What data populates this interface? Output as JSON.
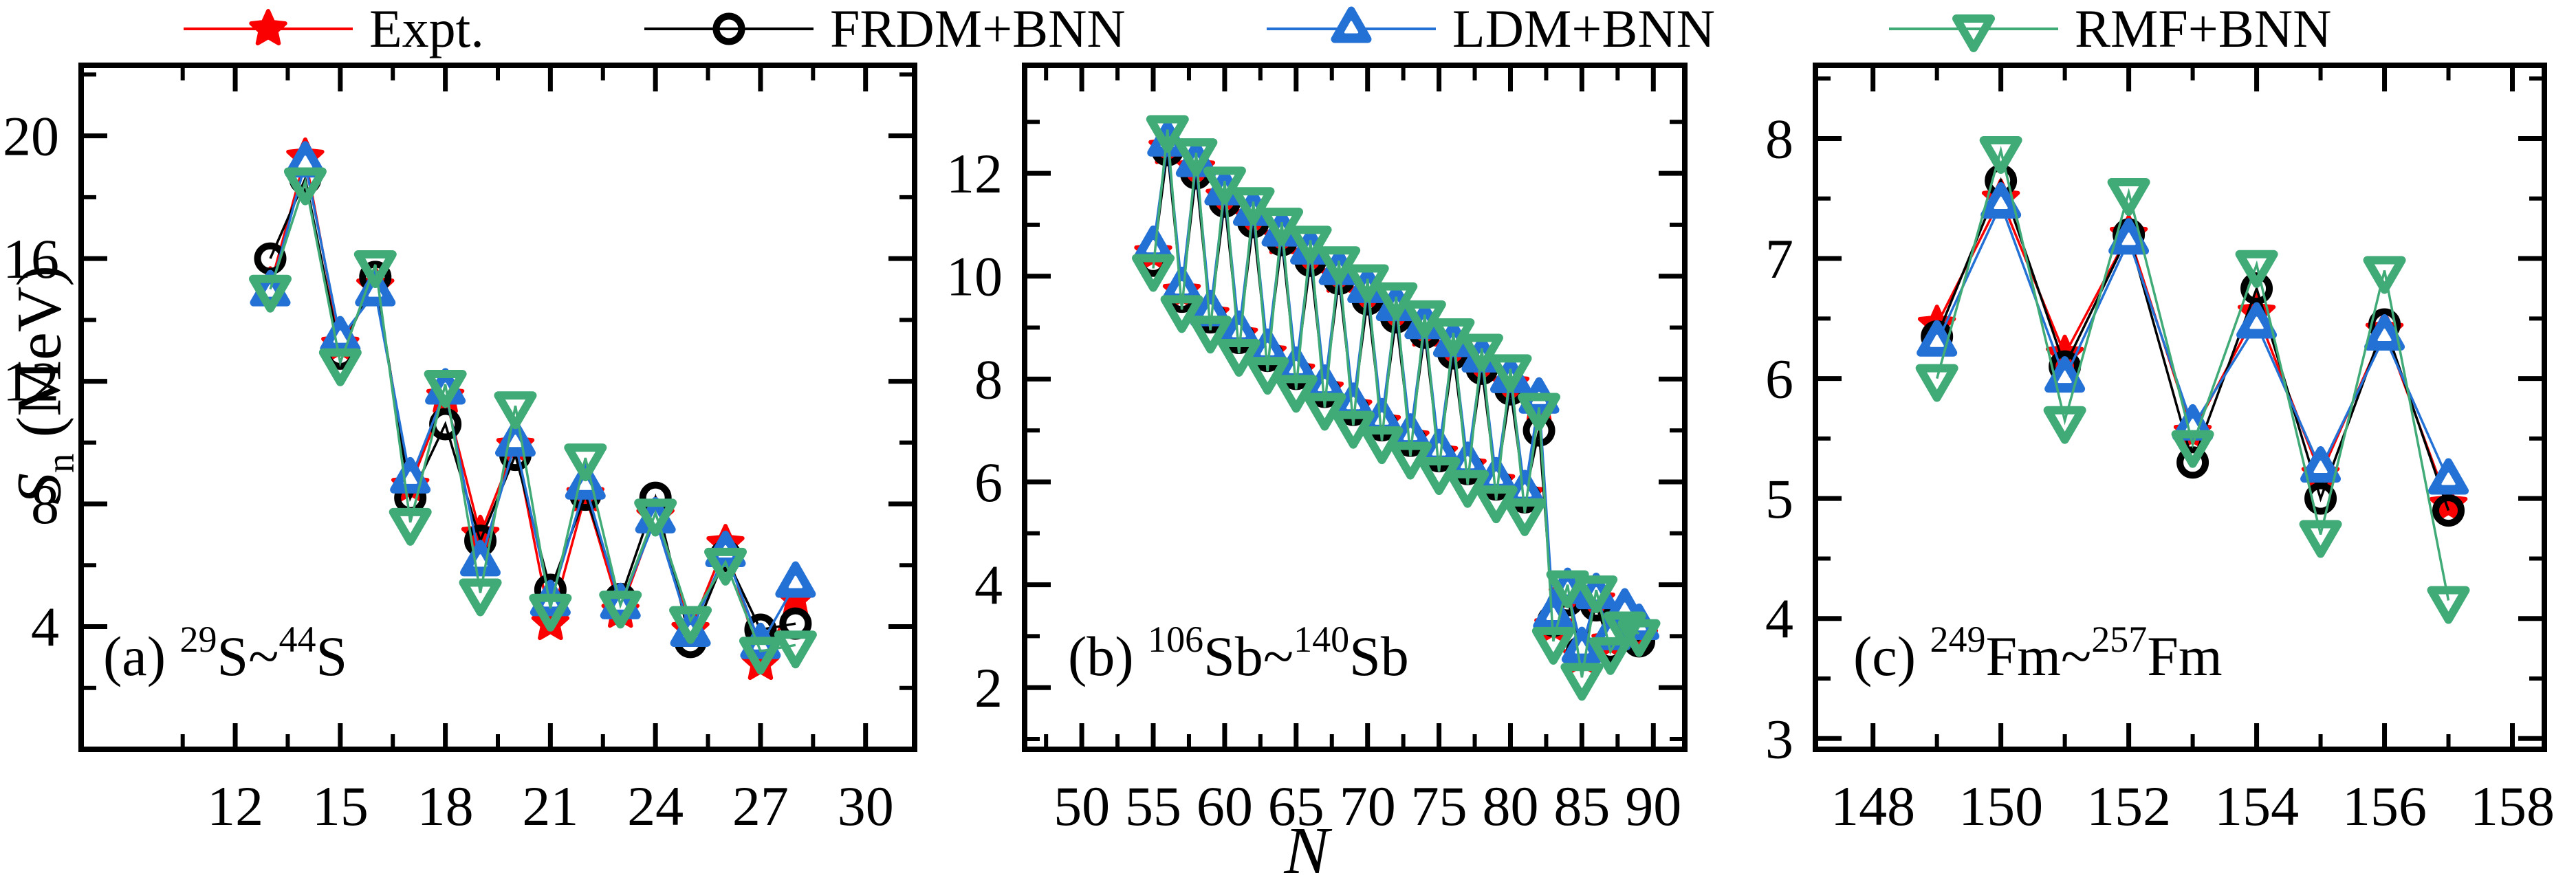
{
  "legend": {
    "items": [
      {
        "label": "Expt.",
        "marker": "star",
        "color": "#fa0000"
      },
      {
        "label": "FRDM+BNN",
        "marker": "circle-open",
        "color": "#000000"
      },
      {
        "label": "LDM+BNN",
        "marker": "triangle-up",
        "color": "#2471d6"
      },
      {
        "label": "RMF+BNN",
        "marker": "triangle-down",
        "color": "#41ab78"
      }
    ]
  },
  "axes": {
    "xlabel": "N",
    "ylabel_main": "S",
    "ylabel_sub": "n",
    "ylabel_rest": " (MeV)"
  },
  "chart_data": [
    {
      "type": "line",
      "panel": "a",
      "annotation": {
        "prefix": "(a) ",
        "sup1": "29",
        "mid": "S~",
        "sup2": "44",
        "end": "S"
      },
      "xlim": [
        7.6,
        31.4
      ],
      "ylim": [
        0,
        22.3
      ],
      "xticks": [
        12,
        15,
        18,
        21,
        24,
        27,
        30
      ],
      "yticks": [
        4,
        8,
        12,
        16,
        20
      ],
      "x": [
        13,
        14,
        15,
        16,
        17,
        18,
        19,
        20,
        21,
        22,
        23,
        24,
        25,
        26,
        27,
        28
      ],
      "series": [
        {
          "name": "Expt.",
          "marker": "star",
          "color": "#fa0000",
          "values": [
            15.1,
            19.3,
            13.2,
            15.1,
            8.6,
            11.5,
            7.0,
            9.9,
            4.1,
            8.3,
            4.5,
            7.6,
            3.9,
            6.7,
            2.8,
            4.9
          ]
        },
        {
          "name": "FRDM+BNN",
          "marker": "circle-open",
          "color": "#000000",
          "values": [
            16.0,
            18.6,
            12.9,
            15.4,
            8.2,
            10.6,
            6.8,
            9.6,
            5.2,
            8.3,
            4.9,
            8.2,
            3.5,
            6.3,
            3.9,
            4.1
          ]
        },
        {
          "name": "LDM+BNN",
          "marker": "triangle-up",
          "color": "#2471d6",
          "values": [
            14.9,
            19.1,
            13.4,
            14.9,
            8.8,
            11.7,
            6.1,
            10.0,
            4.8,
            8.6,
            4.7,
            7.5,
            3.8,
            6.4,
            3.4,
            5.4
          ]
        },
        {
          "name": "RMF+BNN",
          "marker": "triangle-down",
          "color": "#41ab78",
          "values": [
            15.0,
            18.5,
            12.6,
            15.8,
            7.4,
            11.9,
            5.1,
            11.2,
            4.6,
            9.5,
            4.7,
            7.7,
            4.2,
            6.1,
            3.2,
            3.4
          ]
        }
      ]
    },
    {
      "type": "line",
      "panel": "b",
      "annotation": {
        "prefix": "(b) ",
        "sup1": "106",
        "mid": "Sb~",
        "sup2": "140",
        "end": "Sb"
      },
      "xlim": [
        46,
        92.2
      ],
      "ylim": [
        0.8,
        14.1
      ],
      "xticks": [
        50,
        55,
        60,
        65,
        70,
        75,
        80,
        85,
        90
      ],
      "yticks": [
        2,
        4,
        6,
        8,
        10,
        12
      ],
      "x": [
        55,
        56,
        57,
        58,
        59,
        60,
        61,
        62,
        63,
        64,
        65,
        66,
        67,
        68,
        69,
        70,
        71,
        72,
        73,
        74,
        75,
        76,
        77,
        78,
        79,
        80,
        81,
        82,
        83,
        84,
        85,
        86,
        87,
        88,
        89
      ],
      "series": [
        {
          "name": "Expt.",
          "marker": "star",
          "color": "#fa0000",
          "values": [
            10.45,
            12.5,
            9.7,
            12.1,
            9.25,
            11.55,
            8.85,
            11.15,
            8.5,
            10.75,
            8.15,
            10.4,
            7.8,
            10.0,
            7.45,
            9.65,
            7.15,
            9.3,
            6.85,
            8.95,
            6.55,
            8.6,
            6.3,
            8.3,
            6.0,
            7.9,
            5.75,
            7.5,
            3.2,
            3.8,
            2.6,
            3.7,
            2.9,
            3.4,
            3.0
          ]
        },
        {
          "name": "FRDM+BNN",
          "marker": "circle-open",
          "color": "#000000",
          "values": [
            10.3,
            12.45,
            9.6,
            12.0,
            9.2,
            11.45,
            8.8,
            11.05,
            8.45,
            10.7,
            8.1,
            10.3,
            7.75,
            9.95,
            7.4,
            9.55,
            7.1,
            9.2,
            6.8,
            8.9,
            6.5,
            8.5,
            6.25,
            8.2,
            5.95,
            7.8,
            5.7,
            7.0,
            3.3,
            3.7,
            2.7,
            3.6,
            2.8,
            3.3,
            2.9
          ]
        },
        {
          "name": "LDM+BNN",
          "marker": "triangle-up",
          "color": "#2471d6",
          "values": [
            10.55,
            12.6,
            9.75,
            12.2,
            9.3,
            11.65,
            8.9,
            11.25,
            8.55,
            10.85,
            8.2,
            10.5,
            7.85,
            10.1,
            7.5,
            9.75,
            7.2,
            9.4,
            6.9,
            9.05,
            6.6,
            8.7,
            6.35,
            8.4,
            6.05,
            8.0,
            5.8,
            7.6,
            3.4,
            3.9,
            2.75,
            3.8,
            3.0,
            3.5,
            3.2
          ]
        },
        {
          "name": "RMF+BNN",
          "marker": "triangle-down",
          "color": "#41ab78",
          "values": [
            10.15,
            12.85,
            9.35,
            12.4,
            8.95,
            11.85,
            8.5,
            11.45,
            8.15,
            11.05,
            7.8,
            10.7,
            7.45,
            10.3,
            7.1,
            9.95,
            6.8,
            9.6,
            6.5,
            9.25,
            6.2,
            8.9,
            5.95,
            8.6,
            5.65,
            8.2,
            5.4,
            7.45,
            2.9,
            4.0,
            2.2,
            3.9,
            2.7,
            3.2,
            3.05
          ]
        }
      ]
    },
    {
      "type": "line",
      "panel": "c",
      "annotation": {
        "prefix": "(c) ",
        "sup1": "249",
        "mid": "Fm~",
        "sup2": "257",
        "end": "Fm"
      },
      "xlim": [
        147.1,
        158.5
      ],
      "ylim": [
        2.91,
        8.61
      ],
      "xticks": [
        148,
        150,
        152,
        154,
        156,
        158
      ],
      "yticks": [
        3,
        4,
        5,
        6,
        7,
        8
      ],
      "x": [
        149,
        150,
        151,
        152,
        153,
        154,
        155,
        156,
        157
      ],
      "series": [
        {
          "name": "Expt.",
          "marker": "star",
          "color": "#fa0000",
          "values": [
            6.45,
            7.5,
            6.2,
            7.2,
            5.55,
            6.55,
            5.2,
            6.4,
            4.95
          ]
        },
        {
          "name": "FRDM+BNN",
          "marker": "circle-open",
          "color": "#000000",
          "values": [
            6.35,
            7.65,
            6.1,
            7.2,
            5.3,
            6.75,
            5.0,
            6.45,
            4.9
          ]
        },
        {
          "name": "LDM+BNN",
          "marker": "triangle-up",
          "color": "#2471d6",
          "values": [
            6.3,
            7.45,
            6.0,
            7.15,
            5.6,
            6.45,
            5.25,
            6.35,
            5.15
          ]
        },
        {
          "name": "RMF+BNN",
          "marker": "triangle-down",
          "color": "#41ab78",
          "values": [
            6.0,
            7.9,
            5.65,
            7.55,
            5.45,
            6.95,
            4.7,
            6.9,
            4.15
          ]
        }
      ]
    }
  ]
}
